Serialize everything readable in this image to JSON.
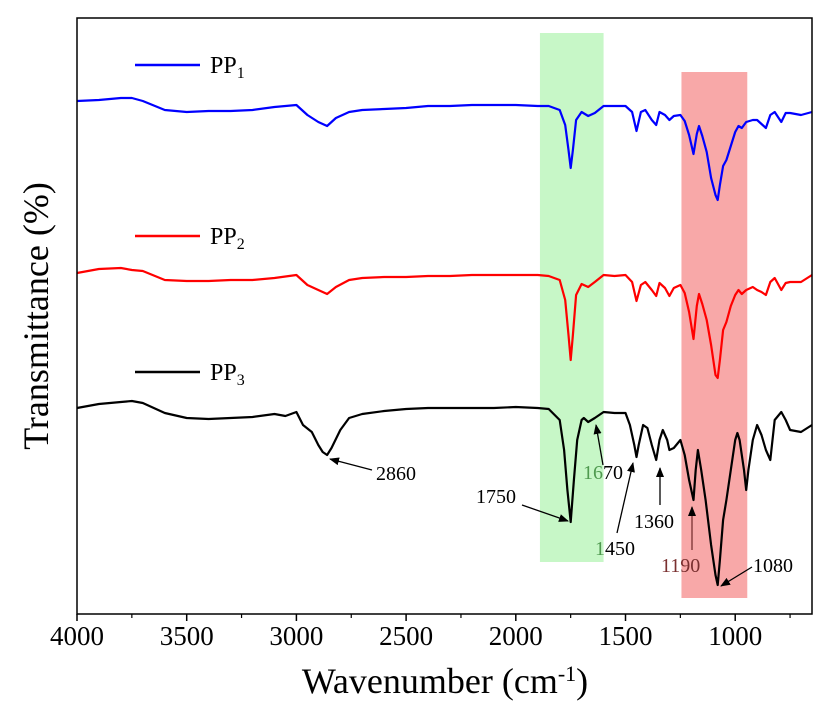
{
  "chart_data": {
    "type": "line",
    "title": "",
    "xlabel": {
      "main": "Wavenumber (cm",
      "sup": "-1",
      "close": ")"
    },
    "ylabel": "Transmittance (%)",
    "xlim": [
      4000,
      650
    ],
    "xticks": [
      4000,
      3500,
      3000,
      2500,
      2000,
      1500,
      1000
    ],
    "grid": false,
    "legend_position": "top-left",
    "series": [
      {
        "name": "PP1",
        "label_main": "PP",
        "label_sub": "1",
        "color": "#0000ff",
        "points": [
          [
            4000,
            101
          ],
          [
            3900,
            100
          ],
          [
            3800,
            98
          ],
          [
            3750,
            98
          ],
          [
            3700,
            101
          ],
          [
            3600,
            110
          ],
          [
            3500,
            112
          ],
          [
            3400,
            111
          ],
          [
            3300,
            111
          ],
          [
            3200,
            110
          ],
          [
            3100,
            107
          ],
          [
            3000,
            105
          ],
          [
            2950,
            115
          ],
          [
            2900,
            122
          ],
          [
            2860,
            126
          ],
          [
            2820,
            118
          ],
          [
            2760,
            112
          ],
          [
            2700,
            110
          ],
          [
            2600,
            109
          ],
          [
            2500,
            108
          ],
          [
            2400,
            106
          ],
          [
            2300,
            106
          ],
          [
            2200,
            105
          ],
          [
            2100,
            105
          ],
          [
            2000,
            105
          ],
          [
            1900,
            106
          ],
          [
            1850,
            106
          ],
          [
            1800,
            110
          ],
          [
            1775,
            125
          ],
          [
            1760,
            150
          ],
          [
            1750,
            168
          ],
          [
            1740,
            150
          ],
          [
            1725,
            120
          ],
          [
            1700,
            112
          ],
          [
            1670,
            116
          ],
          [
            1640,
            113
          ],
          [
            1600,
            106
          ],
          [
            1550,
            106
          ],
          [
            1500,
            106
          ],
          [
            1470,
            112
          ],
          [
            1450,
            131
          ],
          [
            1430,
            112
          ],
          [
            1410,
            110
          ],
          [
            1380,
            120
          ],
          [
            1360,
            125
          ],
          [
            1345,
            112
          ],
          [
            1320,
            115
          ],
          [
            1300,
            120
          ],
          [
            1280,
            116
          ],
          [
            1250,
            115
          ],
          [
            1230,
            121
          ],
          [
            1210,
            135
          ],
          [
            1190,
            154
          ],
          [
            1175,
            134
          ],
          [
            1165,
            126
          ],
          [
            1150,
            136
          ],
          [
            1130,
            152
          ],
          [
            1110,
            178
          ],
          [
            1090,
            195
          ],
          [
            1080,
            200
          ],
          [
            1070,
            185
          ],
          [
            1055,
            166
          ],
          [
            1040,
            160
          ],
          [
            1020,
            146
          ],
          [
            1000,
            132
          ],
          [
            985,
            126
          ],
          [
            970,
            128
          ],
          [
            950,
            122
          ],
          [
            920,
            120
          ],
          [
            900,
            120
          ],
          [
            880,
            124
          ],
          [
            860,
            128
          ],
          [
            840,
            115
          ],
          [
            820,
            112
          ],
          [
            790,
            122
          ],
          [
            770,
            113
          ],
          [
            750,
            113
          ],
          [
            700,
            115
          ],
          [
            650,
            112
          ]
        ]
      },
      {
        "name": "PP2",
        "label_main": "PP",
        "label_sub": "2",
        "color": "#ff0000",
        "points": [
          [
            4000,
            273
          ],
          [
            3900,
            269
          ],
          [
            3800,
            268
          ],
          [
            3750,
            270
          ],
          [
            3700,
            271
          ],
          [
            3600,
            280
          ],
          [
            3500,
            281
          ],
          [
            3400,
            281
          ],
          [
            3300,
            280
          ],
          [
            3200,
            280
          ],
          [
            3100,
            278
          ],
          [
            3000,
            275
          ],
          [
            2950,
            285
          ],
          [
            2900,
            290
          ],
          [
            2860,
            294
          ],
          [
            2820,
            287
          ],
          [
            2760,
            280
          ],
          [
            2700,
            278
          ],
          [
            2600,
            277
          ],
          [
            2500,
            277
          ],
          [
            2400,
            276
          ],
          [
            2300,
            276
          ],
          [
            2200,
            275
          ],
          [
            2100,
            275
          ],
          [
            2000,
            275
          ],
          [
            1900,
            275
          ],
          [
            1850,
            276
          ],
          [
            1800,
            280
          ],
          [
            1775,
            300
          ],
          [
            1760,
            335
          ],
          [
            1750,
            360
          ],
          [
            1740,
            335
          ],
          [
            1725,
            295
          ],
          [
            1700,
            284
          ],
          [
            1670,
            287
          ],
          [
            1640,
            282
          ],
          [
            1600,
            275
          ],
          [
            1550,
            276
          ],
          [
            1500,
            275
          ],
          [
            1470,
            282
          ],
          [
            1450,
            301
          ],
          [
            1430,
            285
          ],
          [
            1410,
            282
          ],
          [
            1380,
            290
          ],
          [
            1360,
            296
          ],
          [
            1345,
            283
          ],
          [
            1320,
            288
          ],
          [
            1300,
            296
          ],
          [
            1280,
            288
          ],
          [
            1250,
            285
          ],
          [
            1230,
            293
          ],
          [
            1210,
            312
          ],
          [
            1190,
            339
          ],
          [
            1175,
            306
          ],
          [
            1165,
            294
          ],
          [
            1150,
            304
          ],
          [
            1130,
            320
          ],
          [
            1110,
            345
          ],
          [
            1090,
            375
          ],
          [
            1080,
            378
          ],
          [
            1070,
            360
          ],
          [
            1055,
            330
          ],
          [
            1040,
            322
          ],
          [
            1020,
            306
          ],
          [
            1000,
            295
          ],
          [
            985,
            290
          ],
          [
            970,
            294
          ],
          [
            950,
            290
          ],
          [
            920,
            287
          ],
          [
            900,
            290
          ],
          [
            880,
            292
          ],
          [
            860,
            295
          ],
          [
            840,
            282
          ],
          [
            820,
            278
          ],
          [
            790,
            290
          ],
          [
            770,
            283
          ],
          [
            750,
            282
          ],
          [
            700,
            282
          ],
          [
            650,
            275
          ]
        ]
      },
      {
        "name": "PP3",
        "label_main": "PP",
        "label_sub": "3",
        "color": "#000000",
        "points": [
          [
            4000,
            408
          ],
          [
            3900,
            404
          ],
          [
            3800,
            402
          ],
          [
            3750,
            401
          ],
          [
            3700,
            403
          ],
          [
            3600,
            413
          ],
          [
            3500,
            418
          ],
          [
            3400,
            419
          ],
          [
            3300,
            418
          ],
          [
            3200,
            417
          ],
          [
            3100,
            414
          ],
          [
            3050,
            416
          ],
          [
            3000,
            412
          ],
          [
            2970,
            425
          ],
          [
            2930,
            432
          ],
          [
            2900,
            445
          ],
          [
            2880,
            452
          ],
          [
            2860,
            455
          ],
          [
            2840,
            448
          ],
          [
            2800,
            430
          ],
          [
            2760,
            418
          ],
          [
            2700,
            414
          ],
          [
            2600,
            411
          ],
          [
            2500,
            409
          ],
          [
            2400,
            408
          ],
          [
            2300,
            408
          ],
          [
            2200,
            408
          ],
          [
            2100,
            408
          ],
          [
            2000,
            407
          ],
          [
            1900,
            408
          ],
          [
            1850,
            409
          ],
          [
            1800,
            420
          ],
          [
            1780,
            450
          ],
          [
            1765,
            490
          ],
          [
            1750,
            522
          ],
          [
            1735,
            480
          ],
          [
            1720,
            440
          ],
          [
            1700,
            420
          ],
          [
            1690,
            418
          ],
          [
            1670,
            422
          ],
          [
            1640,
            418
          ],
          [
            1620,
            415
          ],
          [
            1600,
            412
          ],
          [
            1550,
            413
          ],
          [
            1500,
            413
          ],
          [
            1480,
            425
          ],
          [
            1460,
            445
          ],
          [
            1450,
            457
          ],
          [
            1440,
            445
          ],
          [
            1420,
            425
          ],
          [
            1400,
            428
          ],
          [
            1380,
            445
          ],
          [
            1360,
            460
          ],
          [
            1345,
            440
          ],
          [
            1330,
            430
          ],
          [
            1310,
            440
          ],
          [
            1300,
            450
          ],
          [
            1280,
            448
          ],
          [
            1250,
            440
          ],
          [
            1230,
            455
          ],
          [
            1210,
            480
          ],
          [
            1190,
            500
          ],
          [
            1180,
            470
          ],
          [
            1170,
            450
          ],
          [
            1155,
            470
          ],
          [
            1135,
            500
          ],
          [
            1110,
            545
          ],
          [
            1090,
            575
          ],
          [
            1080,
            585
          ],
          [
            1070,
            560
          ],
          [
            1055,
            520
          ],
          [
            1040,
            500
          ],
          [
            1020,
            470
          ],
          [
            1000,
            440
          ],
          [
            990,
            433
          ],
          [
            980,
            440
          ],
          [
            960,
            470
          ],
          [
            950,
            490
          ],
          [
            940,
            470
          ],
          [
            920,
            440
          ],
          [
            900,
            425
          ],
          [
            880,
            435
          ],
          [
            860,
            450
          ],
          [
            840,
            460
          ],
          [
            820,
            420
          ],
          [
            790,
            412
          ],
          [
            770,
            420
          ],
          [
            750,
            430
          ],
          [
            700,
            432
          ],
          [
            650,
            425
          ]
        ]
      }
    ],
    "highlights": [
      {
        "name": "green-band",
        "x_from": 1890,
        "x_to": 1600,
        "color": "#99f099"
      },
      {
        "name": "red-band",
        "x_from": 1245,
        "x_to": 945,
        "color": "#f36e6e"
      }
    ],
    "annotations": [
      {
        "name": "label-2860",
        "text": "2860"
      },
      {
        "name": "label-1750",
        "text": "1750"
      },
      {
        "name": "label-1670-a",
        "text": "16"
      },
      {
        "name": "label-1670-b",
        "text": "70"
      },
      {
        "name": "label-1450-a",
        "text": "1"
      },
      {
        "name": "label-1450-b",
        "text": "450"
      },
      {
        "name": "label-1360",
        "text": "1360"
      },
      {
        "name": "label-1190",
        "text": "1190"
      },
      {
        "name": "label-1080",
        "text": "1080"
      }
    ]
  }
}
